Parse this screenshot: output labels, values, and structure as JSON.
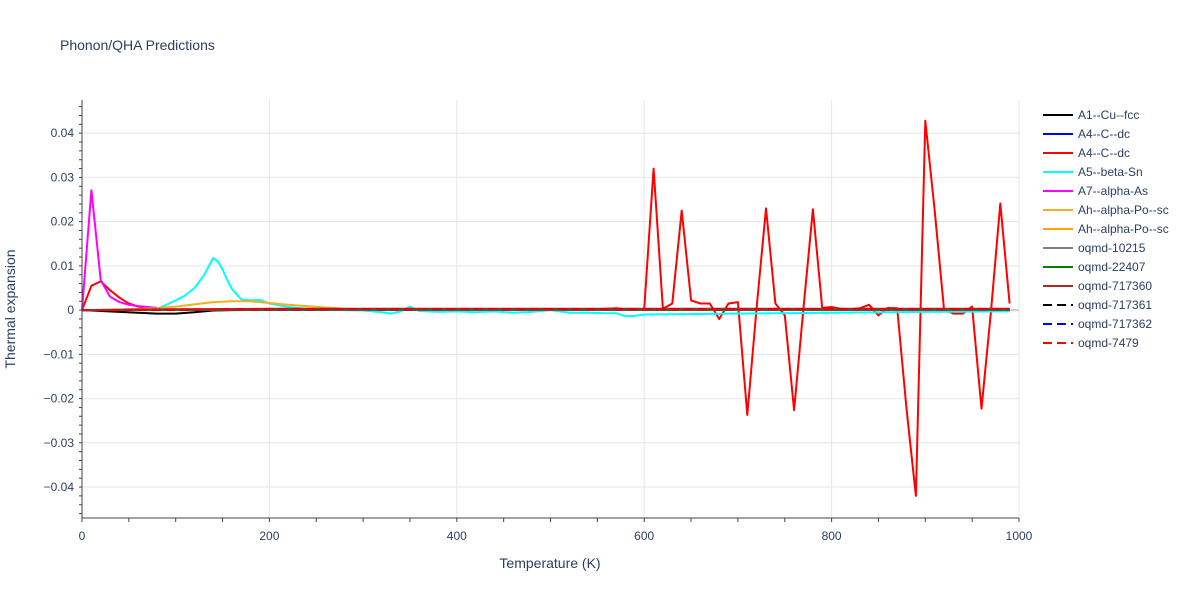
{
  "chart_data": {
    "type": "line",
    "title": "Phonon/QHA Predictions",
    "xlabel": "Temperature (K)",
    "ylabel": "Thermal expansion",
    "xlim": [
      0,
      1000
    ],
    "ylim": [
      -0.047,
      0.0475
    ],
    "x_ticks": [
      0,
      200,
      400,
      600,
      800,
      1000
    ],
    "x_tick_labels": [
      "0",
      "200",
      "400",
      "600",
      "800",
      "1000"
    ],
    "y_ticks": [
      -0.04,
      -0.03,
      -0.02,
      -0.01,
      0,
      0.01,
      0.02,
      0.03,
      0.04
    ],
    "y_tick_labels": [
      "−0.04",
      "−0.03",
      "−0.02",
      "−0.01",
      "0",
      "0.01",
      "0.02",
      "0.03",
      "0.04"
    ],
    "grid": true,
    "legend_position": "right",
    "series": [
      {
        "name": "A1--Cu--fcc",
        "color": "#000000",
        "dash": "solid",
        "x": [
          0,
          20,
          40,
          60,
          80,
          100,
          120,
          140,
          160,
          200,
          300,
          400,
          500,
          600,
          700,
          800,
          900,
          990
        ],
        "y": [
          0,
          -0.0002,
          -0.0004,
          -0.0006,
          -0.0008,
          -0.0008,
          -0.0005,
          -0.0001,
          0,
          0.0001,
          0.0001,
          0.0001,
          0.0001,
          0.0001,
          0.0001,
          0.0001,
          0.0001,
          0.0001
        ]
      },
      {
        "name": "A4--C--dc",
        "color": "#0000ff",
        "dash": "solid",
        "x": [
          0,
          100,
          200,
          300,
          400,
          500,
          600,
          700,
          800,
          900,
          990
        ],
        "y": [
          0,
          0.0001,
          0.0001,
          0.0001,
          0.0001,
          0.0001,
          0.0001,
          0.0001,
          0.0001,
          0.0001,
          0.0001
        ]
      },
      {
        "name": "A4--C--dc",
        "color": "#ff0000",
        "dash": "solid",
        "x": [
          0,
          10,
          20,
          30,
          40,
          50,
          60,
          70,
          80,
          90,
          100,
          200,
          300,
          400,
          500,
          550,
          570,
          580,
          590,
          600,
          610,
          620,
          630,
          640,
          650,
          660,
          670,
          680,
          690,
          700,
          710,
          720,
          730,
          740,
          750,
          760,
          770,
          780,
          790,
          800,
          810,
          820,
          830,
          840,
          850,
          860,
          870,
          880,
          890,
          900,
          910,
          920,
          930,
          940,
          950,
          960,
          970,
          980,
          990
        ],
        "y": [
          0,
          0.0055,
          0.0065,
          0.0045,
          0.0028,
          0.0015,
          0.0008,
          0.0005,
          0.0003,
          0.0002,
          0.0001,
          0.0001,
          0.0002,
          0.0001,
          0.0002,
          0.0002,
          0.0004,
          0.0002,
          0.0002,
          0.0002,
          0.032,
          0.0003,
          0.0015,
          0.0225,
          0.0022,
          0.0015,
          0.0015,
          -0.002,
          0.0015,
          0.0018,
          -0.0237,
          0.0005,
          0.023,
          0.0015,
          -0.0012,
          -0.0226,
          0.0005,
          0.0228,
          0.0005,
          0.0007,
          0.0003,
          0.0002,
          0.0004,
          0.0012,
          -0.0012,
          0.0005,
          0.0004,
          -0.0225,
          -0.042,
          0.0428,
          0.0225,
          0.0002,
          -0.0008,
          -0.0008,
          0.0008,
          -0.0223,
          -0.0005,
          0.0241,
          0.0015
        ]
      },
      {
        "name": "A5--beta-Sn",
        "color": "#00ffff",
        "dash": "solid",
        "x": [
          0,
          20,
          40,
          60,
          80,
          90,
          100,
          110,
          120,
          130,
          140,
          145,
          150,
          155,
          160,
          170,
          180,
          190,
          200,
          220,
          240,
          260,
          280,
          300,
          320,
          330,
          340,
          350,
          360,
          380,
          400,
          420,
          440,
          460,
          480,
          500,
          520,
          540,
          560,
          570,
          580,
          590,
          600,
          640,
          700,
          800,
          900,
          990
        ],
        "y": [
          0,
          0,
          0,
          0.0001,
          0.0003,
          0.0012,
          0.0022,
          0.0033,
          0.005,
          0.0078,
          0.0118,
          0.011,
          0.0092,
          0.0068,
          0.0048,
          0.0024,
          0.0022,
          0.0023,
          0.0015,
          0.0007,
          0.0003,
          0.0001,
          0,
          -0.0001,
          -0.0005,
          -0.0008,
          -0.0003,
          0.0008,
          -0.0002,
          -0.0004,
          -0.0003,
          -0.0005,
          -0.0003,
          -0.0006,
          -0.0004,
          0,
          -0.0006,
          -0.0006,
          -0.0007,
          -0.0007,
          -0.0014,
          -0.0013,
          -0.001,
          -0.0009,
          -0.0008,
          -0.0006,
          -0.0004,
          -0.0003
        ]
      },
      {
        "name": "A7--alpha-As",
        "color": "#ff00ff",
        "dash": "solid",
        "x": [
          0,
          10,
          20,
          30,
          40,
          50,
          60,
          70,
          80
        ],
        "y": [
          0,
          0.0271,
          0.0068,
          0.003,
          0.0018,
          0.0012,
          0.0009,
          0.0007,
          0.0005
        ]
      },
      {
        "name": "Ah--alpha-Po--sc",
        "color": "#f0b020",
        "dash": "solid",
        "x": [
          0,
          40,
          80,
          100,
          120,
          140,
          160,
          180,
          200,
          220,
          240,
          260,
          280,
          300,
          400,
          500,
          600,
          800,
          990
        ],
        "y": [
          0,
          0.0001,
          0.0004,
          0.0008,
          0.0013,
          0.0018,
          0.002,
          0.002,
          0.0016,
          0.0012,
          0.0009,
          0.0006,
          0.0003,
          0.0002,
          0.0001,
          0.0001,
          0.0001,
          0.0001,
          0.0001
        ]
      },
      {
        "name": "Ah--alpha-Po--sc",
        "color": "#ffa500",
        "dash": "solid",
        "x": [
          0,
          100,
          200,
          300,
          400,
          500,
          600,
          700,
          800,
          900,
          990
        ],
        "y": [
          0,
          0.0002,
          0.0002,
          0.0002,
          0.0002,
          0.0002,
          0.0002,
          0.0002,
          0.0002,
          0.0002,
          0.0002
        ]
      },
      {
        "name": "oqmd-10215",
        "color": "#808080",
        "dash": "solid",
        "x": [
          0,
          100,
          200,
          300,
          400,
          500,
          600,
          700,
          800,
          900,
          990
        ],
        "y": [
          0,
          0.0001,
          0.0001,
          0.0001,
          0.0001,
          0.0001,
          0.0001,
          0.0001,
          0.0001,
          0.0001,
          0.0001
        ]
      },
      {
        "name": "oqmd-22407",
        "color": "#008000",
        "dash": "solid",
        "x": [
          0,
          100,
          200,
          300,
          400,
          500,
          600,
          700,
          800,
          900,
          990
        ],
        "y": [
          0,
          0.0001,
          0.0001,
          0.0001,
          0.0001,
          0.0001,
          0.0001,
          0.0001,
          0.0001,
          0.0001,
          0.0001
        ]
      },
      {
        "name": "oqmd-717360",
        "color": "#a52a2a",
        "dash": "solid",
        "x": [
          0,
          100,
          200,
          300,
          400,
          500,
          600,
          700,
          800,
          900,
          990
        ],
        "y": [
          0,
          0.0002,
          0.0003,
          0.0003,
          0.0003,
          0.0003,
          0.0003,
          0.0003,
          0.0003,
          0.0003,
          0.0003
        ]
      },
      {
        "name": "oqmd-717361",
        "color": "#000000",
        "dash": "dash",
        "x": [
          0,
          100,
          200,
          300,
          400,
          500,
          600,
          700,
          800,
          900,
          990
        ],
        "y": [
          0,
          0.0001,
          0.0002,
          0.0002,
          0.0002,
          0.0002,
          0.0002,
          0.0002,
          0.0002,
          0.0002,
          0.0002
        ]
      },
      {
        "name": "oqmd-717362",
        "color": "#0000ff",
        "dash": "dash",
        "x": [
          0,
          100,
          200,
          300,
          400,
          500,
          600,
          700,
          800,
          900,
          990
        ],
        "y": [
          0,
          0.0001,
          0.0002,
          0.0002,
          0.0002,
          0.0002,
          0.0002,
          0.0002,
          0.0002,
          0.0002,
          0.0002
        ]
      },
      {
        "name": "oqmd-7479",
        "color": "#ff0000",
        "dash": "dash",
        "x": [
          0,
          100,
          200,
          300,
          400,
          500,
          600,
          700,
          800,
          900,
          990
        ],
        "y": [
          0,
          0.0001,
          0.0002,
          0.0002,
          0.0002,
          0.0002,
          0.0002,
          0.0002,
          0.0002,
          0.0002,
          0.0002
        ]
      }
    ]
  }
}
